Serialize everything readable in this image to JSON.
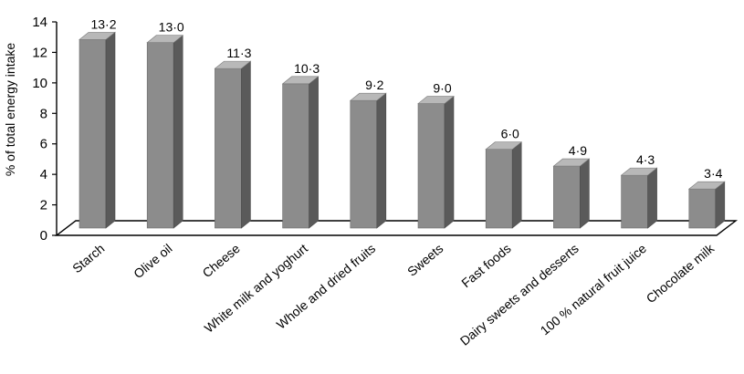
{
  "chart_data": {
    "type": "bar",
    "style": "3d-column",
    "ylabel": "% of total energy intake",
    "xlabel": "",
    "title": "",
    "ylim": [
      0,
      14
    ],
    "yticks": [
      0,
      2,
      4,
      6,
      8,
      10,
      12,
      14
    ],
    "ytick_labels": [
      "0",
      "2",
      "4",
      "6",
      "8",
      "10",
      "12",
      "14"
    ],
    "grid": false,
    "legend": "none",
    "categories": [
      "Starch",
      "Olive oil",
      "Cheese",
      "White milk and yoghurt",
      "Whole and dried fruits",
      "Sweets",
      "Fast foods",
      "Dairy sweets and desserts",
      "100 % natural fruit juice",
      "Chocolate milk"
    ],
    "values": [
      13.2,
      13.0,
      11.3,
      10.3,
      9.2,
      9.0,
      6.0,
      4.9,
      4.3,
      3.4
    ],
    "value_labels": [
      "13·2",
      "13·0",
      "11·3",
      "10·3",
      "9·2",
      "9·0",
      "6·0",
      "4·9",
      "4·3",
      "3·4"
    ],
    "colors": {
      "bar_front": "#8c8c8c",
      "bar_side": "#5a5a5a",
      "bar_top": "#b8b8b8",
      "axis": "#000000"
    }
  }
}
